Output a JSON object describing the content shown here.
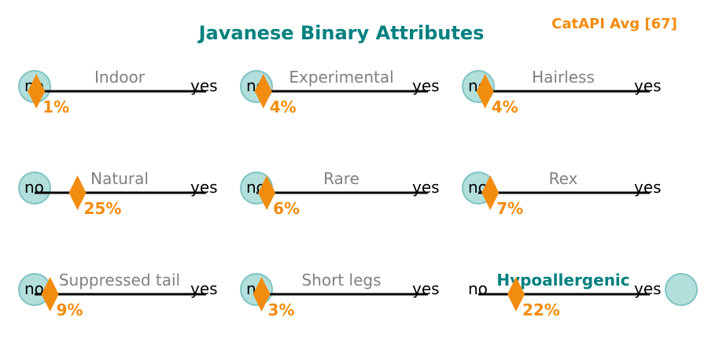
{
  "title": "Javanese Binary Attributes",
  "badge": "CatAPI Avg [67]",
  "colors": {
    "title": "#008080",
    "accent": "#f28c0f",
    "circle_fill": "#b2dfdb",
    "circle_stroke": "#80c4c4",
    "label": "#808080",
    "highlight": "#008080",
    "line": "#000000"
  },
  "chart_data": {
    "type": "attribute-sliders",
    "title": "Javanese Binary Attributes",
    "scale": {
      "min_label": "no",
      "max_label": "yes",
      "range": [
        0,
        100
      ]
    },
    "attributes": [
      {
        "label": "Indoor",
        "value": 0,
        "percent": 1,
        "percent_label": "1%",
        "highlight": false
      },
      {
        "label": "Experimental",
        "value": 0,
        "percent": 4,
        "percent_label": "4%",
        "highlight": false
      },
      {
        "label": "Hairless",
        "value": 0,
        "percent": 4,
        "percent_label": "4%",
        "highlight": false
      },
      {
        "label": "Natural",
        "value": 0,
        "percent": 25,
        "percent_label": "25%",
        "highlight": false
      },
      {
        "label": "Rare",
        "value": 0,
        "percent": 6,
        "percent_label": "6%",
        "highlight": false
      },
      {
        "label": "Rex",
        "value": 0,
        "percent": 7,
        "percent_label": "7%",
        "highlight": false
      },
      {
        "label": "Suppressed tail",
        "value": 0,
        "percent": 9,
        "percent_label": "9%",
        "highlight": false
      },
      {
        "label": "Short legs",
        "value": 0,
        "percent": 3,
        "percent_label": "3%",
        "highlight": false
      },
      {
        "label": "Hypoallergenic",
        "value": 1,
        "percent": 22,
        "percent_label": "22%",
        "highlight": true
      }
    ]
  }
}
